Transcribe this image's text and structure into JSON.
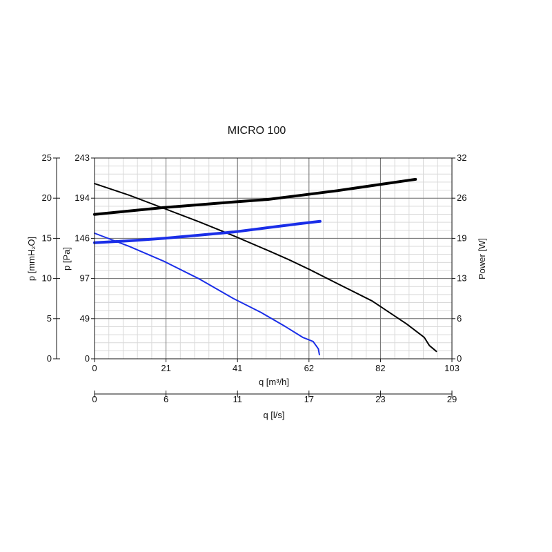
{
  "chart_data": {
    "type": "line",
    "title": "MICRO 100",
    "xlabel": "q [m³/h]",
    "xlim": [
      0,
      103
    ],
    "x_ticks": [
      "0",
      "21",
      "41",
      "62",
      "82",
      "103"
    ],
    "x2label": "q [l/s]",
    "x2_ticks": [
      "0",
      "6",
      "11",
      "17",
      "23",
      "29"
    ],
    "ylabel_left_outer": "p [mmH₂O]",
    "y_outer_ticks": [
      "0",
      "5",
      "10",
      "15",
      "20",
      "25"
    ],
    "ylabel_left": "p [Pa]",
    "ylim": [
      0,
      243
    ],
    "y_ticks": [
      "0",
      "49",
      "97",
      "146",
      "194",
      "243"
    ],
    "ylabel_right": "Power [W]",
    "y2lim": [
      0,
      32
    ],
    "y2_ticks": [
      "0",
      "6",
      "13",
      "19",
      "26",
      "32"
    ],
    "grid": true,
    "series": [
      {
        "axis": "pressure",
        "color": "#000000",
        "values": [
          [
            0,
            212
          ],
          [
            10,
            198
          ],
          [
            20,
            182
          ],
          [
            30,
            166
          ],
          [
            40,
            149
          ],
          [
            50,
            131
          ],
          [
            56,
            120
          ],
          [
            62,
            108
          ],
          [
            70,
            91
          ],
          [
            80,
            70
          ],
          [
            90,
            42
          ],
          [
            95,
            26
          ],
          [
            96.5,
            16
          ],
          [
            98.5,
            9
          ]
        ]
      },
      {
        "axis": "pressure",
        "color": "#1a2ee8",
        "values": [
          [
            0,
            152
          ],
          [
            10,
            136
          ],
          [
            20,
            118
          ],
          [
            30,
            97
          ],
          [
            40,
            73
          ],
          [
            48,
            56
          ],
          [
            55,
            39
          ],
          [
            60,
            26
          ],
          [
            63,
            21
          ],
          [
            64.5,
            12
          ],
          [
            64.8,
            5
          ]
        ]
      },
      {
        "axis": "power",
        "color": "#000000",
        "values": [
          [
            0,
            23.0
          ],
          [
            20,
            24.1
          ],
          [
            40,
            25.0
          ],
          [
            50,
            25.4
          ],
          [
            60,
            26.1
          ],
          [
            70,
            26.8
          ],
          [
            80,
            27.6
          ],
          [
            90,
            28.4
          ],
          [
            92.5,
            28.6
          ]
        ]
      },
      {
        "axis": "power",
        "color": "#1a2ee8",
        "values": [
          [
            0,
            18.5
          ],
          [
            10,
            18.8
          ],
          [
            20,
            19.2
          ],
          [
            30,
            19.7
          ],
          [
            40,
            20.2
          ],
          [
            50,
            20.9
          ],
          [
            60,
            21.6
          ],
          [
            65,
            21.9
          ]
        ]
      }
    ]
  }
}
